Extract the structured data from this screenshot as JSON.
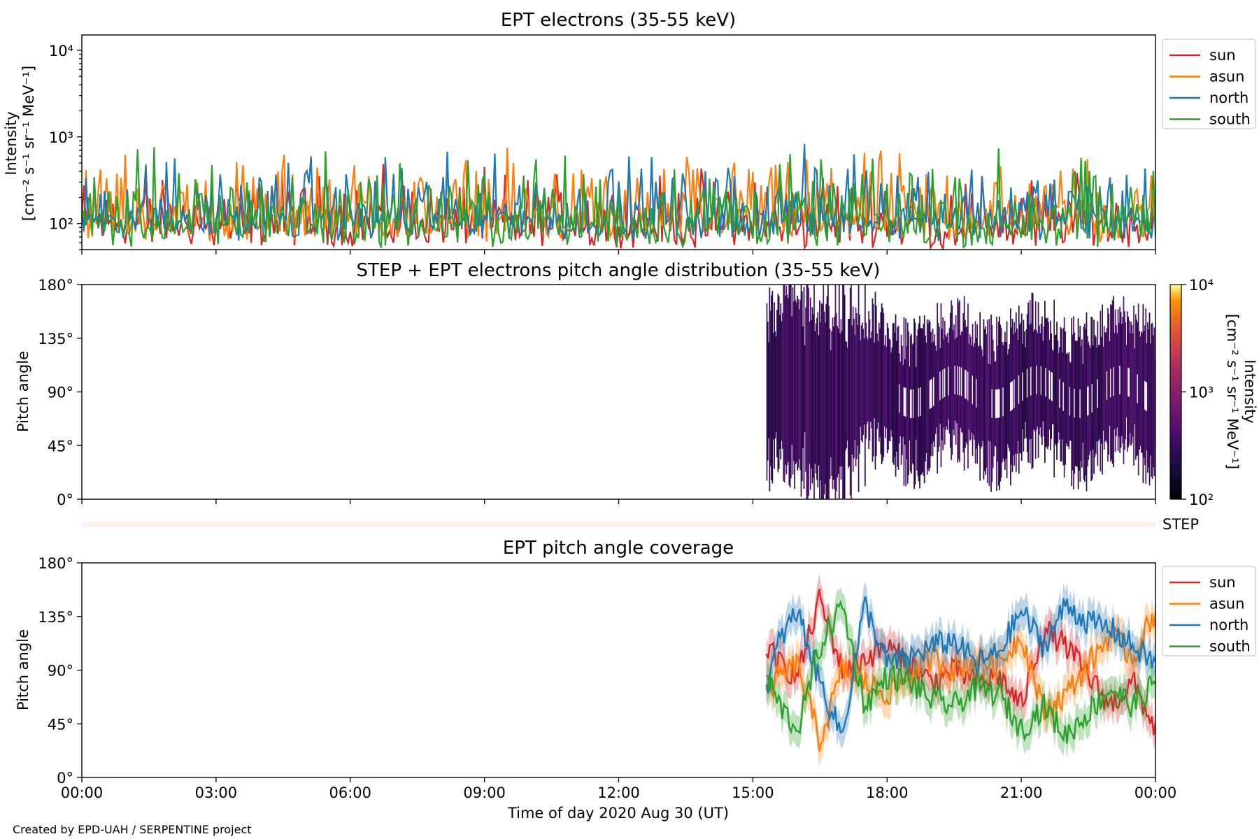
{
  "credit": "Created by EPD-UAH / SERPENTINE project",
  "colors": {
    "sun": "#d62728",
    "asun": "#ff7f0e",
    "north": "#1f77b4",
    "south": "#2ca02c"
  },
  "chart_data": [
    {
      "id": "intensity",
      "type": "line",
      "title": "EPT electrons (35-55 keV)",
      "ylabel_line1": "Intensity",
      "ylabel_line2": "[cm⁻² s⁻¹ sr⁻¹ MeV⁻¹]",
      "yscale": "log",
      "ylim": [
        50,
        15000
      ],
      "yticks": [
        {
          "label": "10⁴",
          "value": 10000
        },
        {
          "label": "10³",
          "value": 1000
        },
        {
          "label": "10²",
          "value": 100
        }
      ],
      "xlim_hours": [
        0,
        24
      ],
      "legend_position": "upper right, outside",
      "series": [
        {
          "name": "sun",
          "color": "#d62728",
          "typical_min": 50,
          "typical_max": 350
        },
        {
          "name": "asun",
          "color": "#ff7f0e",
          "typical_min": 60,
          "typical_max": 600
        },
        {
          "name": "north",
          "color": "#1f77b4",
          "typical_min": 60,
          "typical_max": 600
        },
        {
          "name": "south",
          "color": "#2ca02c",
          "typical_min": 50,
          "typical_max": 600
        }
      ]
    },
    {
      "id": "pad",
      "type": "heatmap",
      "title": "STEP + EPT electrons pitch angle distribution (35-55 keV)",
      "ylabel": "Pitch angle",
      "ylim": [
        0,
        180
      ],
      "yticks": [
        "0°",
        "45°",
        "90°",
        "135°",
        "180°"
      ],
      "data_start_hour": 15.3,
      "colorbar": {
        "scale": "log",
        "range": [
          100,
          10000
        ],
        "ticks": [
          "10²",
          "10³",
          "10⁴"
        ],
        "label_line1": "Intensity",
        "label_line2": "[cm⁻² s⁻¹ sr⁻¹ MeV⁻¹]"
      },
      "step_strip_label": "STEP"
    },
    {
      "id": "coverage",
      "type": "line",
      "title": "EPT pitch angle coverage",
      "ylabel": "Pitch angle",
      "xlabel": "Time of day 2020 Aug 30 (UT)",
      "ylim": [
        0,
        180
      ],
      "yticks": [
        "0°",
        "45°",
        "90°",
        "135°",
        "180°"
      ],
      "xticks": [
        "00:00",
        "03:00",
        "06:00",
        "09:00",
        "12:00",
        "15:00",
        "18:00",
        "21:00",
        "00:00"
      ],
      "xtick_hours": [
        0,
        3,
        6,
        9,
        12,
        15,
        18,
        21,
        24
      ],
      "legend_position": "upper right, outside",
      "series": [
        {
          "name": "sun",
          "color": "#d62728",
          "x": [
            15.3,
            15.6,
            16.0,
            16.5,
            17.0,
            17.5,
            18.0,
            18.5,
            19.0,
            19.5,
            20.0,
            20.5,
            21.0,
            21.5,
            22.0,
            22.5,
            23.0,
            23.5,
            24.0
          ],
          "y": [
            110,
            95,
            85,
            150,
            90,
            100,
            110,
            95,
            80,
            90,
            80,
            85,
            60,
            125,
            110,
            85,
            60,
            80,
            40
          ]
        },
        {
          "name": "asun",
          "color": "#ff7f0e",
          "x": [
            15.3,
            15.6,
            16.0,
            16.5,
            17.0,
            17.5,
            18.0,
            18.5,
            19.0,
            19.5,
            20.0,
            20.5,
            21.0,
            21.5,
            22.0,
            22.5,
            23.0,
            23.5,
            24.0
          ],
          "y": [
            70,
            85,
            95,
            30,
            90,
            80,
            70,
            85,
            100,
            90,
            100,
            95,
            120,
            55,
            70,
            95,
            120,
            100,
            140
          ]
        },
        {
          "name": "north",
          "color": "#1f77b4",
          "x": [
            15.3,
            15.6,
            16.0,
            16.5,
            17.0,
            17.5,
            18.0,
            18.5,
            19.0,
            19.5,
            20.0,
            20.5,
            21.0,
            21.5,
            22.0,
            22.5,
            23.0,
            23.5,
            24.0
          ],
          "y": [
            75,
            115,
            140,
            80,
            35,
            145,
            95,
            100,
            110,
            115,
            95,
            105,
            140,
            110,
            145,
            130,
            125,
            110,
            95
          ]
        },
        {
          "name": "south",
          "color": "#2ca02c",
          "x": [
            15.3,
            15.6,
            16.0,
            16.5,
            17.0,
            17.5,
            18.0,
            18.5,
            19.0,
            19.5,
            20.0,
            20.5,
            21.0,
            21.5,
            22.0,
            22.5,
            23.0,
            23.5,
            24.0
          ],
          "y": [
            85,
            60,
            40,
            110,
            145,
            60,
            85,
            80,
            65,
            60,
            75,
            70,
            40,
            60,
            35,
            55,
            75,
            60,
            80
          ]
        }
      ]
    }
  ]
}
